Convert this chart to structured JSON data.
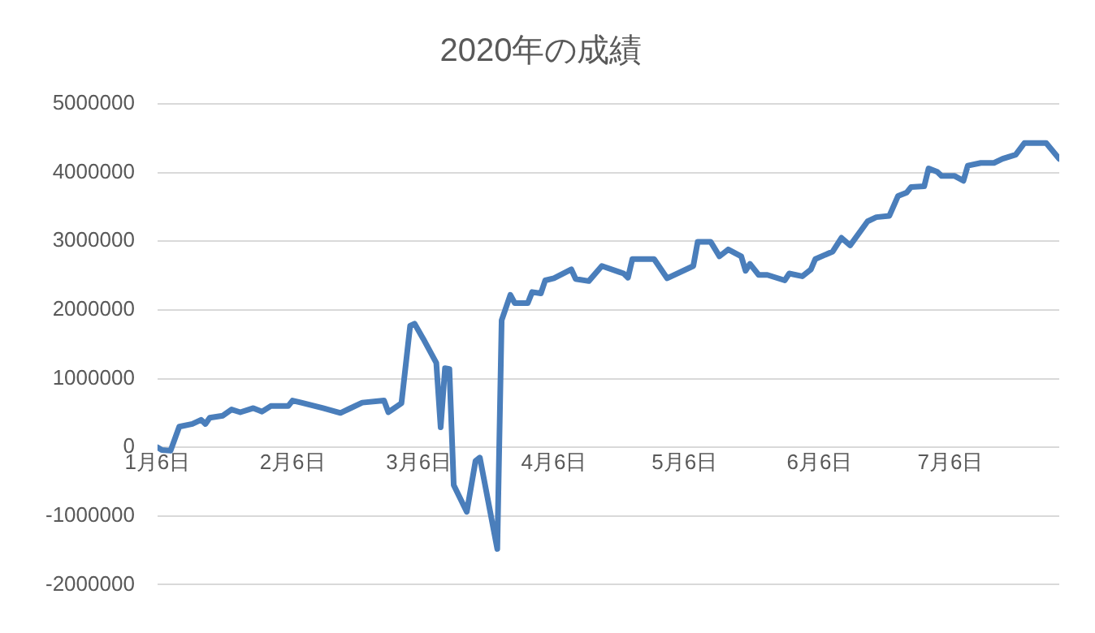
{
  "chart_data": {
    "type": "line",
    "title": "2020年の成績",
    "color": "#4a7ebb",
    "grid": "y",
    "legend": false,
    "marker": "none",
    "line_style": "solid",
    "x": [
      "--01-06",
      "--01-07",
      "--01-09",
      "--01-11",
      "--01-14",
      "--01-16",
      "--01-17",
      "--01-18",
      "--01-21",
      "--01-23",
      "--01-25",
      "--01-28",
      "--01-30",
      "--02-01",
      "--02-05",
      "--02-06",
      "--02-08",
      "--02-13",
      "--02-17",
      "--02-19",
      "--02-22",
      "--02-27",
      "--02-28",
      "--03-02",
      "--03-04",
      "--03-05",
      "--03-07",
      "--03-10",
      "--03-11",
      "--03-12",
      "--03-13",
      "--03-14",
      "--03-17",
      "--03-19",
      "--03-20",
      "--03-24",
      "--03-25",
      "--03-27",
      "--03-28",
      "--03-31",
      "--04-01",
      "--04-03",
      "--04-04",
      "--04-06",
      "--04-10",
      "--04-11",
      "--04-14",
      "--04-17",
      "--04-22",
      "--04-23",
      "--04-24",
      "--04-29",
      "--05-02",
      "--05-08",
      "--05-09",
      "--05-12",
      "--05-14",
      "--05-16",
      "--05-19",
      "--05-20",
      "--05-21",
      "--05-23",
      "--05-25",
      "--05-29",
      "--05-30",
      "--06-02",
      "--06-04",
      "--06-05",
      "--06-09",
      "--06-11",
      "--06-13",
      "--06-17",
      "--06-19",
      "--06-22",
      "--06-24",
      "--06-26",
      "--06-27",
      "--06-30",
      "--07-01",
      "--07-03",
      "--07-04",
      "--07-07",
      "--07-09",
      "--07-10",
      "--07-13",
      "--07-16",
      "--07-18",
      "--07-21",
      "--07-23",
      "--07-28",
      "--07-31"
    ],
    "values": [
      0,
      -40000,
      -50000,
      300000,
      340000,
      400000,
      340000,
      430000,
      460000,
      550000,
      510000,
      570000,
      520000,
      600000,
      600000,
      680000,
      650000,
      570000,
      500000,
      560000,
      650000,
      680000,
      510000,
      640000,
      1770000,
      1800000,
      1580000,
      1230000,
      290000,
      1150000,
      1140000,
      -550000,
      -940000,
      -200000,
      -150000,
      -1480000,
      1850000,
      2220000,
      2100000,
      2100000,
      2260000,
      2240000,
      2430000,
      2460000,
      2590000,
      2450000,
      2420000,
      2640000,
      2530000,
      2470000,
      2740000,
      2740000,
      2460000,
      2640000,
      2990000,
      2990000,
      2780000,
      2880000,
      2780000,
      2570000,
      2670000,
      2510000,
      2510000,
      2430000,
      2530000,
      2490000,
      2590000,
      2740000,
      2850000,
      3050000,
      2940000,
      3290000,
      3350000,
      3370000,
      3660000,
      3710000,
      3790000,
      3800000,
      4060000,
      4010000,
      3950000,
      3950000,
      3880000,
      4100000,
      4140000,
      4140000,
      4200000,
      4260000,
      4430000,
      4430000,
      4200000
    ],
    "xlim": [
      "--01-06",
      "--07-31"
    ],
    "xticks": [
      {
        "value": "--01-06",
        "label": "1月6日"
      },
      {
        "value": "--02-06",
        "label": "2月6日"
      },
      {
        "value": "--03-06",
        "label": "3月6日"
      },
      {
        "value": "--04-06",
        "label": "4月6日"
      },
      {
        "value": "--05-06",
        "label": "5月6日"
      },
      {
        "value": "--06-06",
        "label": "6月6日"
      },
      {
        "value": "--07-06",
        "label": "7月6日"
      }
    ],
    "ylim": [
      -2000000,
      5000000
    ],
    "yticks": [
      -2000000,
      -1000000,
      0,
      1000000,
      2000000,
      3000000,
      4000000,
      5000000
    ]
  }
}
